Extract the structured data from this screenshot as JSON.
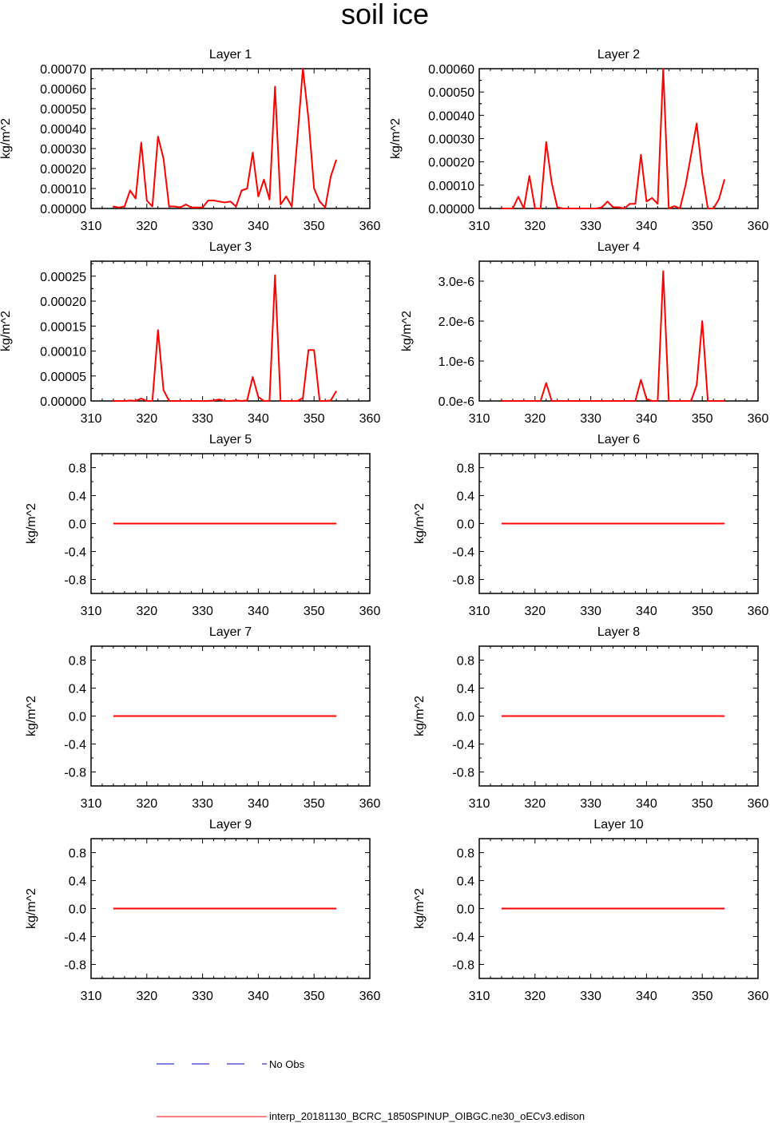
{
  "title": "soil ice",
  "legend": {
    "obs_label": "No Obs",
    "obs_color": "#0000cc",
    "model_label": "interp_20181130_BCRC_1850SPINUP_OIBGC.ne30_oECv3.edison",
    "model_color": "#ff0000"
  },
  "chart_data": [
    {
      "type": "line",
      "title": "Layer 1",
      "ylabel": "kg/m^2",
      "xlim": [
        310,
        360
      ],
      "ylim": [
        0,
        0.0007
      ],
      "xticks": [
        310,
        320,
        330,
        340,
        350,
        360
      ],
      "xtick_labels": [
        "310",
        "320",
        "330",
        "340",
        "350",
        "360"
      ],
      "yticks": [
        0,
        0.0001,
        0.0002,
        0.0003,
        0.0004,
        0.0005,
        0.0006,
        0.0007
      ],
      "ytick_labels": [
        "0.00000",
        "0.00010",
        "0.00020",
        "0.00030",
        "0.00040",
        "0.00050",
        "0.00060",
        "0.00070"
      ],
      "series": [
        {
          "name": "interp_20181130_BCRC_1850SPINUP_OIBGC.ne30_oECv3.edison",
          "x": [
            314,
            315,
            316,
            317,
            318,
            319,
            320,
            321,
            322,
            323,
            324,
            325,
            326,
            327,
            328,
            329,
            330,
            331,
            332,
            333,
            334,
            335,
            336,
            337,
            338,
            339,
            340,
            341,
            342,
            343,
            344,
            345,
            346,
            347,
            348,
            349,
            350,
            351,
            352,
            353,
            354
          ],
          "y": [
            1e-05,
            5e-06,
            1e-05,
            9e-05,
            5e-05,
            0.00033,
            4e-05,
            1e-05,
            0.00036,
            0.00025,
            1e-05,
            1e-05,
            5e-06,
            2e-05,
            5e-06,
            5e-06,
            5e-06,
            4e-05,
            4e-05,
            3.5e-05,
            3e-05,
            3.5e-05,
            1e-05,
            9e-05,
            0.0001,
            0.00028,
            6e-05,
            0.000145,
            4.5e-05,
            0.00061,
            2e-05,
            6e-05,
            1e-05,
            0.00035,
            0.0007,
            0.00045,
            0.0001,
            3.5e-05,
            5e-06,
            0.00016,
            0.000245
          ]
        }
      ]
    },
    {
      "type": "line",
      "title": "Layer 2",
      "ylabel": "kg/m^2",
      "xlim": [
        310,
        360
      ],
      "ylim": [
        0,
        0.0006
      ],
      "xticks": [
        310,
        320,
        330,
        340,
        350,
        360
      ],
      "xtick_labels": [
        "310",
        "320",
        "330",
        "340",
        "350",
        "360"
      ],
      "yticks": [
        0,
        0.0001,
        0.0002,
        0.0003,
        0.0004,
        0.0005,
        0.0006
      ],
      "ytick_labels": [
        "0.00000",
        "0.00010",
        "0.00020",
        "0.00030",
        "0.00040",
        "0.00050",
        "0.00060"
      ],
      "series": [
        {
          "name": "interp_20181130_BCRC_1850SPINUP_OIBGC.ne30_oECv3.edison",
          "x": [
            314,
            315,
            316,
            317,
            318,
            319,
            320,
            321,
            322,
            323,
            324,
            325,
            326,
            327,
            328,
            329,
            330,
            331,
            332,
            333,
            334,
            335,
            336,
            337,
            338,
            339,
            340,
            341,
            342,
            343,
            344,
            345,
            346,
            347,
            348,
            349,
            350,
            351,
            352,
            353,
            354
          ],
          "y": [
            0,
            0,
            0,
            5e-05,
            0,
            0.00014,
            0,
            0,
            0.000285,
            0.00011,
            5e-06,
            0,
            0,
            0,
            0,
            0,
            0,
            0,
            5e-06,
            3e-05,
            5e-06,
            5e-06,
            0,
            2e-05,
            2e-05,
            0.00023,
            3e-05,
            4.5e-05,
            2e-05,
            0.0006,
            0,
            1e-05,
            0,
            0.0001,
            0.00023,
            0.000365,
            0.00015,
            0,
            0,
            4e-05,
            0.000125
          ]
        }
      ]
    },
    {
      "type": "line",
      "title": "Layer 3",
      "ylabel": "kg/m^2",
      "xlim": [
        310,
        360
      ],
      "ylim": [
        0,
        0.00028
      ],
      "xticks": [
        310,
        320,
        330,
        340,
        350,
        360
      ],
      "xtick_labels": [
        "310",
        "320",
        "330",
        "340",
        "350",
        "360"
      ],
      "yticks": [
        0,
        5e-05,
        0.0001,
        0.00015,
        0.0002,
        0.00025
      ],
      "ytick_labels": [
        "0.00000",
        "0.00005",
        "0.00010",
        "0.00015",
        "0.00020",
        "0.00025"
      ],
      "series": [
        {
          "name": "interp_20181130_BCRC_1850SPINUP_OIBGC.ne30_oECv3.edison",
          "x": [
            314,
            315,
            316,
            317,
            318,
            319,
            320,
            321,
            322,
            323,
            324,
            325,
            326,
            327,
            328,
            329,
            330,
            331,
            332,
            333,
            334,
            335,
            336,
            337,
            338,
            339,
            340,
            341,
            342,
            343,
            344,
            345,
            346,
            347,
            348,
            349,
            350,
            351,
            352,
            353,
            354
          ],
          "y": [
            0,
            0,
            0,
            1e-06,
            0,
            5e-06,
            0,
            0,
            0.000142,
            2.2e-05,
            0,
            0,
            0,
            0,
            0,
            0,
            0,
            0,
            1e-06,
            3e-06,
            0,
            0,
            1e-06,
            0,
            1e-06,
            4.8e-05,
            8e-06,
            0,
            0,
            0.000252,
            0,
            0,
            0,
            0,
            6e-06,
            0.000102,
            0.000102,
            0,
            0,
            1e-06,
            2e-05
          ]
        }
      ]
    },
    {
      "type": "line",
      "title": "Layer 4",
      "ylabel": "kg/m^2",
      "xlim": [
        310,
        360
      ],
      "ylim": [
        0,
        3.5e-06
      ],
      "xticks": [
        310,
        320,
        330,
        340,
        350,
        360
      ],
      "xtick_labels": [
        "310",
        "320",
        "330",
        "340",
        "350",
        "360"
      ],
      "yticks": [
        0,
        1e-06,
        2e-06,
        3e-06
      ],
      "ytick_labels": [
        "0.0e-6",
        "1.0e-6",
        "2.0e-6",
        "3.0e-6"
      ],
      "series": [
        {
          "name": "interp_20181130_BCRC_1850SPINUP_OIBGC.ne30_oECv3.edison",
          "x": [
            314,
            315,
            316,
            317,
            318,
            319,
            320,
            321,
            322,
            323,
            324,
            325,
            326,
            327,
            328,
            329,
            330,
            331,
            332,
            333,
            334,
            335,
            336,
            337,
            338,
            339,
            340,
            341,
            342,
            343,
            344,
            345,
            346,
            347,
            348,
            349,
            350,
            351,
            352,
            353,
            354
          ],
          "y": [
            0,
            0,
            0,
            0,
            0,
            0,
            0,
            0,
            4.5e-07,
            0,
            0,
            0,
            0,
            0,
            0,
            0,
            0,
            0,
            0,
            0,
            0,
            0,
            0,
            0,
            0,
            5.3e-07,
            5e-08,
            0,
            0,
            3.25e-06,
            0,
            0,
            0,
            0,
            0,
            4e-07,
            2e-06,
            0,
            0,
            0,
            0
          ]
        }
      ]
    },
    {
      "type": "line",
      "title": "Layer 5",
      "ylabel": "kg/m^2",
      "xlim": [
        310,
        360
      ],
      "ylim": [
        -1,
        1
      ],
      "xticks": [
        310,
        320,
        330,
        340,
        350,
        360
      ],
      "xtick_labels": [
        "310",
        "320",
        "330",
        "340",
        "350",
        "360"
      ],
      "yticks": [
        -0.8,
        -0.4,
        0,
        0.4,
        0.8
      ],
      "ytick_labels": [
        "-0.8",
        "-0.4",
        "0.0",
        "0.4",
        "0.8"
      ],
      "series": [
        {
          "name": "interp_20181130_BCRC_1850SPINUP_OIBGC.ne30_oECv3.edison",
          "x": [
            314,
            354
          ],
          "y": [
            0,
            0
          ]
        }
      ]
    },
    {
      "type": "line",
      "title": "Layer 6",
      "ylabel": "kg/m^2",
      "xlim": [
        310,
        360
      ],
      "ylim": [
        -1,
        1
      ],
      "xticks": [
        310,
        320,
        330,
        340,
        350,
        360
      ],
      "xtick_labels": [
        "310",
        "320",
        "330",
        "340",
        "350",
        "360"
      ],
      "yticks": [
        -0.8,
        -0.4,
        0,
        0.4,
        0.8
      ],
      "ytick_labels": [
        "-0.8",
        "-0.4",
        "0.0",
        "0.4",
        "0.8"
      ],
      "series": [
        {
          "name": "interp_20181130_BCRC_1850SPINUP_OIBGC.ne30_oECv3.edison",
          "x": [
            314,
            354
          ],
          "y": [
            0,
            0
          ]
        }
      ]
    },
    {
      "type": "line",
      "title": "Layer 7",
      "ylabel": "kg/m^2",
      "xlim": [
        310,
        360
      ],
      "ylim": [
        -1,
        1
      ],
      "xticks": [
        310,
        320,
        330,
        340,
        350,
        360
      ],
      "xtick_labels": [
        "310",
        "320",
        "330",
        "340",
        "350",
        "360"
      ],
      "yticks": [
        -0.8,
        -0.4,
        0,
        0.4,
        0.8
      ],
      "ytick_labels": [
        "-0.8",
        "-0.4",
        "0.0",
        "0.4",
        "0.8"
      ],
      "series": [
        {
          "name": "interp_20181130_BCRC_1850SPINUP_OIBGC.ne30_oECv3.edison",
          "x": [
            314,
            354
          ],
          "y": [
            0,
            0
          ]
        }
      ]
    },
    {
      "type": "line",
      "title": "Layer 8",
      "ylabel": "kg/m^2",
      "xlim": [
        310,
        360
      ],
      "ylim": [
        -1,
        1
      ],
      "xticks": [
        310,
        320,
        330,
        340,
        350,
        360
      ],
      "xtick_labels": [
        "310",
        "320",
        "330",
        "340",
        "350",
        "360"
      ],
      "yticks": [
        -0.8,
        -0.4,
        0,
        0.4,
        0.8
      ],
      "ytick_labels": [
        "-0.8",
        "-0.4",
        "0.0",
        "0.4",
        "0.8"
      ],
      "series": [
        {
          "name": "interp_20181130_BCRC_1850SPINUP_OIBGC.ne30_oECv3.edison",
          "x": [
            314,
            354
          ],
          "y": [
            0,
            0
          ]
        }
      ]
    },
    {
      "type": "line",
      "title": "Layer 9",
      "ylabel": "kg/m^2",
      "xlim": [
        310,
        360
      ],
      "ylim": [
        -1,
        1
      ],
      "xticks": [
        310,
        320,
        330,
        340,
        350,
        360
      ],
      "xtick_labels": [
        "310",
        "320",
        "330",
        "340",
        "350",
        "360"
      ],
      "yticks": [
        -0.8,
        -0.4,
        0,
        0.4,
        0.8
      ],
      "ytick_labels": [
        "-0.8",
        "-0.4",
        "0.0",
        "0.4",
        "0.8"
      ],
      "series": [
        {
          "name": "interp_20181130_BCRC_1850SPINUP_OIBGC.ne30_oECv3.edison",
          "x": [
            314,
            354
          ],
          "y": [
            0,
            0
          ]
        }
      ]
    },
    {
      "type": "line",
      "title": "Layer 10",
      "ylabel": "kg/m^2",
      "xlim": [
        310,
        360
      ],
      "ylim": [
        -1,
        1
      ],
      "xticks": [
        310,
        320,
        330,
        340,
        350,
        360
      ],
      "xtick_labels": [
        "310",
        "320",
        "330",
        "340",
        "350",
        "360"
      ],
      "yticks": [
        -0.8,
        -0.4,
        0,
        0.4,
        0.8
      ],
      "ytick_labels": [
        "-0.8",
        "-0.4",
        "0.0",
        "0.4",
        "0.8"
      ],
      "series": [
        {
          "name": "interp_20181130_BCRC_1850SPINUP_OIBGC.ne30_oECv3.edison",
          "x": [
            314,
            354
          ],
          "y": [
            0,
            0
          ]
        }
      ]
    }
  ]
}
